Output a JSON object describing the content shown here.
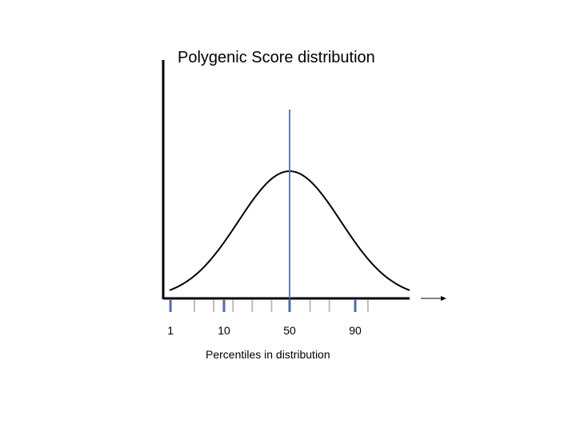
{
  "chart_data": {
    "type": "line",
    "title": "Polygenic Score distribution",
    "xlabel": "Percentiles in distribution",
    "ylabel": "",
    "curve": "normal-distribution",
    "marker_line_percentile": 50,
    "tick_labels": [
      {
        "percentile": 1,
        "label": "1"
      },
      {
        "percentile": 10,
        "label": "10"
      },
      {
        "percentile": 50,
        "label": "50"
      },
      {
        "percentile": 90,
        "label": "90"
      }
    ],
    "highlighted_ticks": [
      1,
      10,
      50,
      90
    ],
    "grid": false,
    "legend": "none"
  },
  "colors": {
    "axis": "#000000",
    "curve": "#000000",
    "marker_line": "#5b7fb5",
    "major_tick": "#4f6fa6",
    "minor_tick": "#bdbdbd"
  }
}
